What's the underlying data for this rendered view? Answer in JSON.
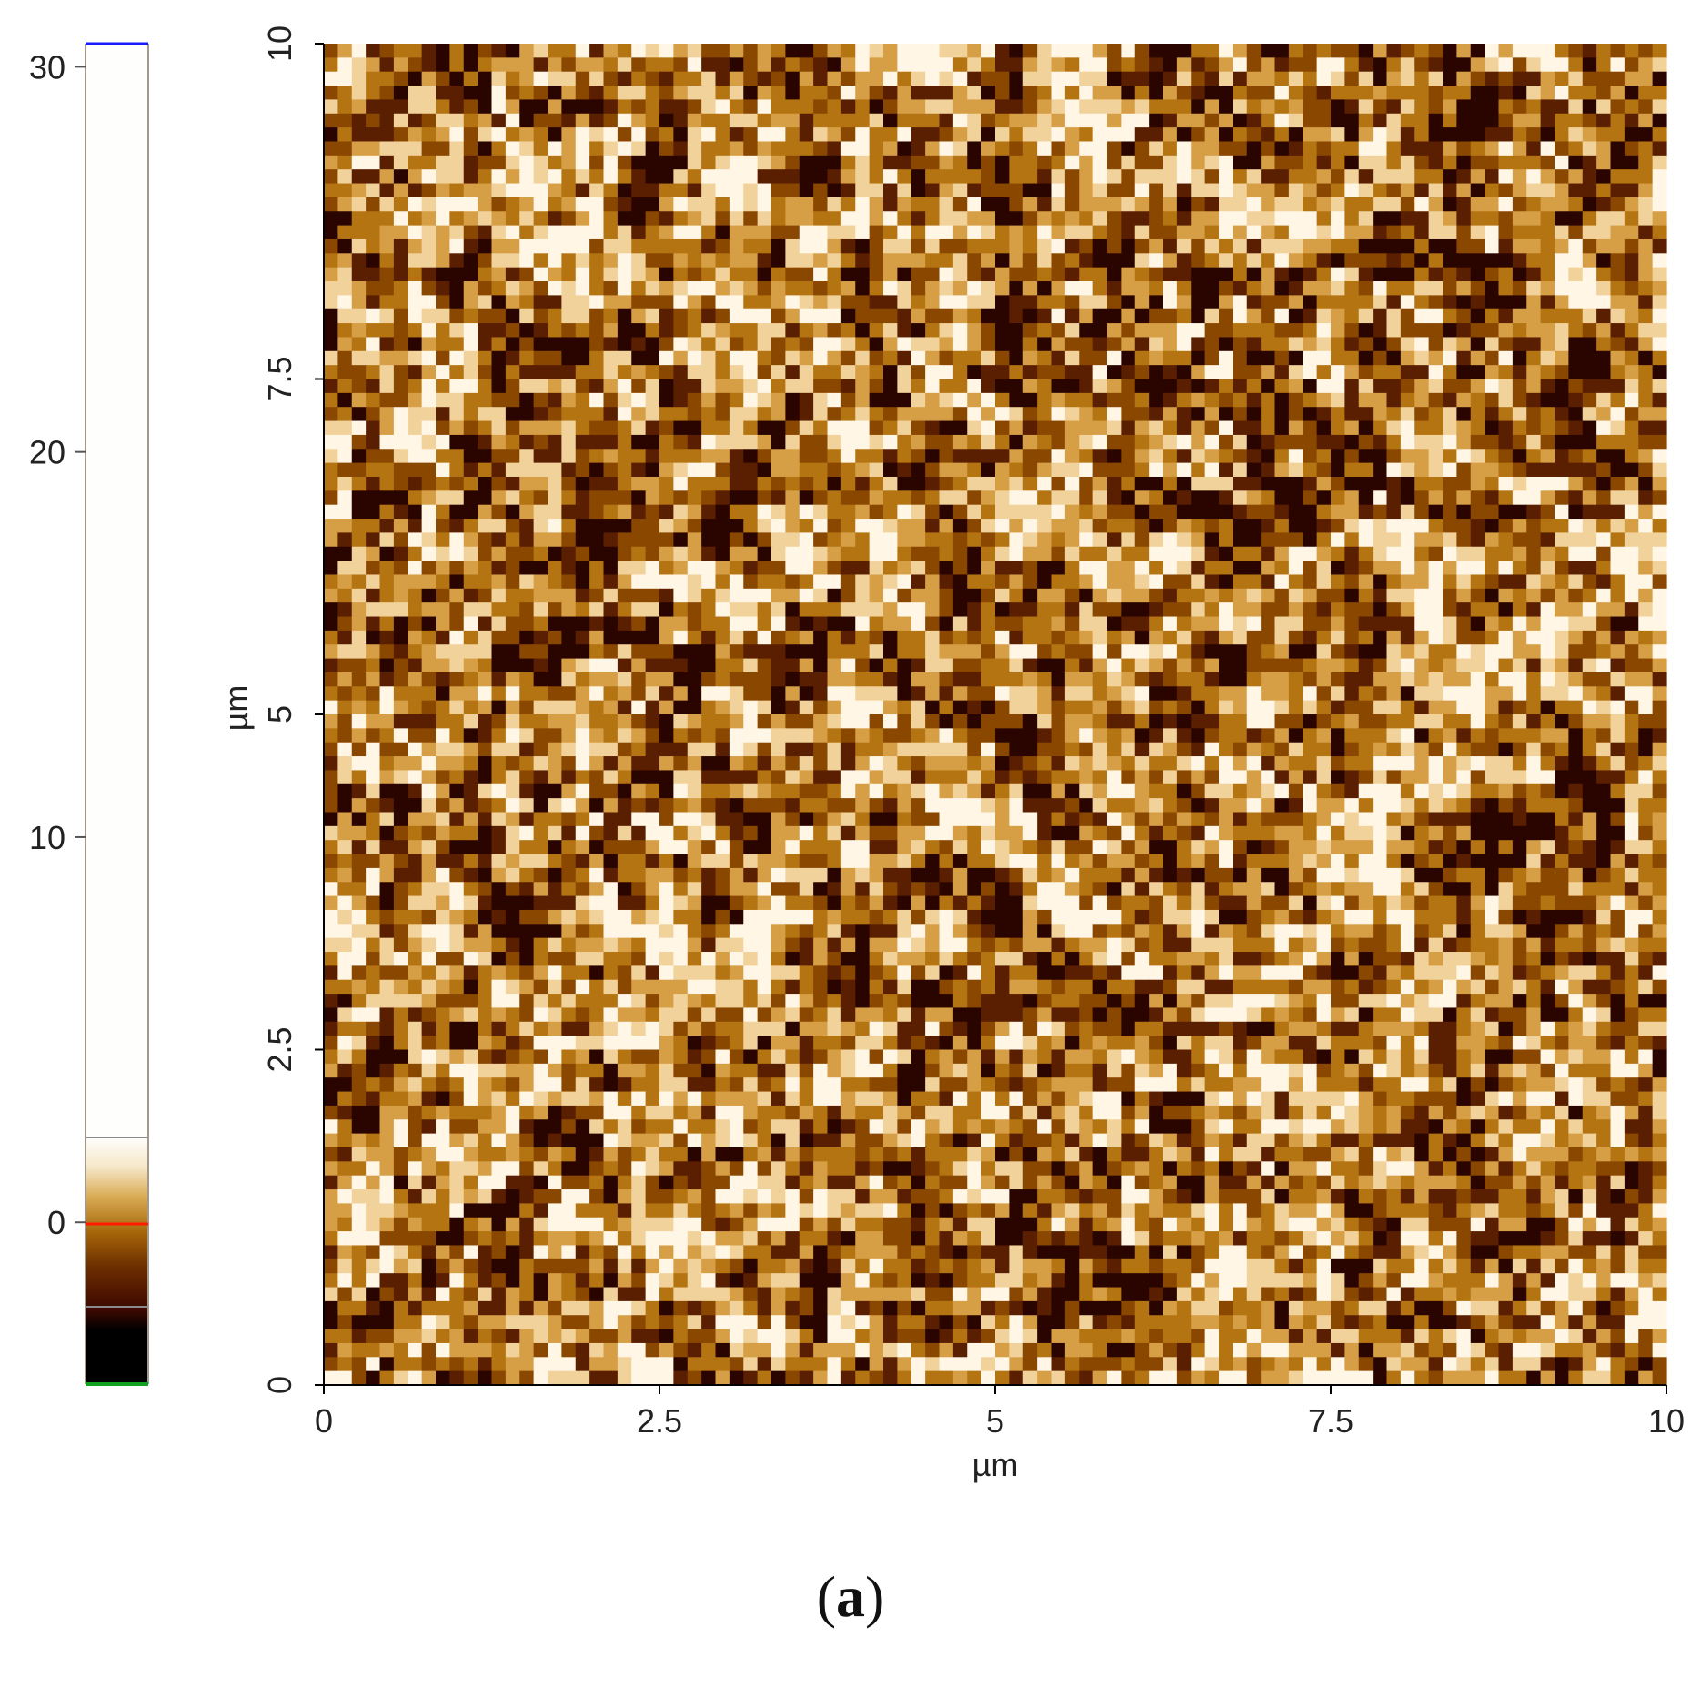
{
  "chart_data": {
    "type": "heatmap",
    "title": "",
    "xlabel": "µm",
    "ylabel": "µm",
    "x_range": [
      0,
      10
    ],
    "y_range": [
      0,
      10
    ],
    "x_ticks": [
      "0",
      "2.5",
      "5",
      "7.5",
      "10"
    ],
    "y_ticks": [
      "0",
      "2.5",
      "5",
      "7.5",
      "10"
    ],
    "grid": false,
    "colorscale": {
      "ticks": [
        "0",
        "10",
        "20",
        "30"
      ],
      "range": [
        -4.2,
        30.6
      ],
      "colors": [
        "#000000",
        "#3c0800",
        "#7d3a00",
        "#b8780c",
        "#e2bd6a",
        "#fbf2de",
        "#fefefc"
      ],
      "marker_colors": {
        "top": "#1a1aff",
        "zero": "#ff1a00",
        "bottom": "#10a020"
      }
    },
    "image_palette": [
      "#2a0500",
      "#5a1e00",
      "#8a4700",
      "#b47412",
      "#d69e45",
      "#f1d29b",
      "#fff6e6"
    ]
  },
  "panel_label": {
    "open": "(",
    "letter": "a",
    "close": ")"
  }
}
